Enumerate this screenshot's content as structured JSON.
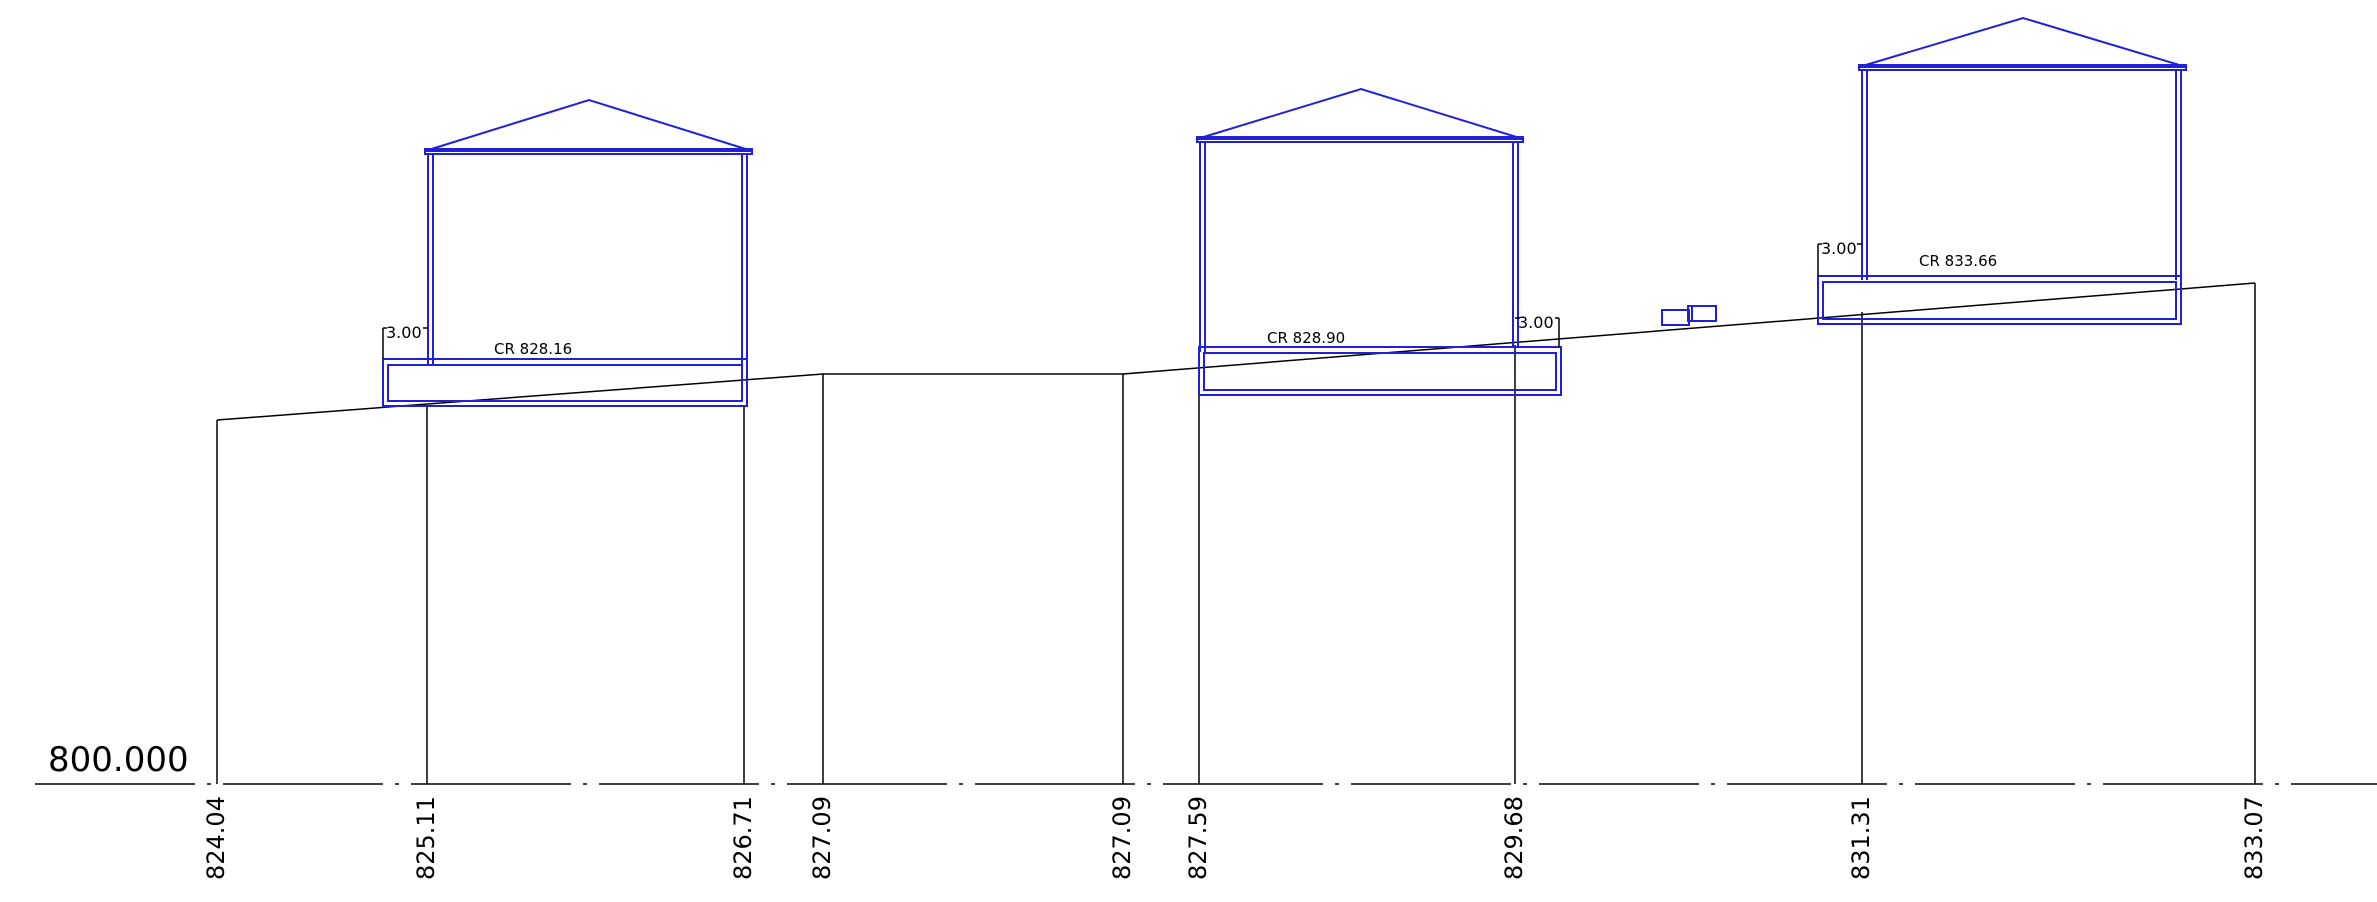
{
  "datum_label": "800.000",
  "stations": [
    "824.04",
    "825.11",
    "826.71",
    "827.09",
    "827.09",
    "827.59",
    "829.68",
    "831.31",
    "833.07"
  ],
  "houses": [
    {
      "cr_label": "CR  828.16",
      "offset_label": "3.00"
    },
    {
      "cr_label": "CR  828.90",
      "offset_label": "3.00"
    },
    {
      "cr_label": "CR  833.66",
      "offset_label": "3.00"
    }
  ],
  "colors": {
    "terrain": "#000000",
    "building": "#2020d8"
  }
}
